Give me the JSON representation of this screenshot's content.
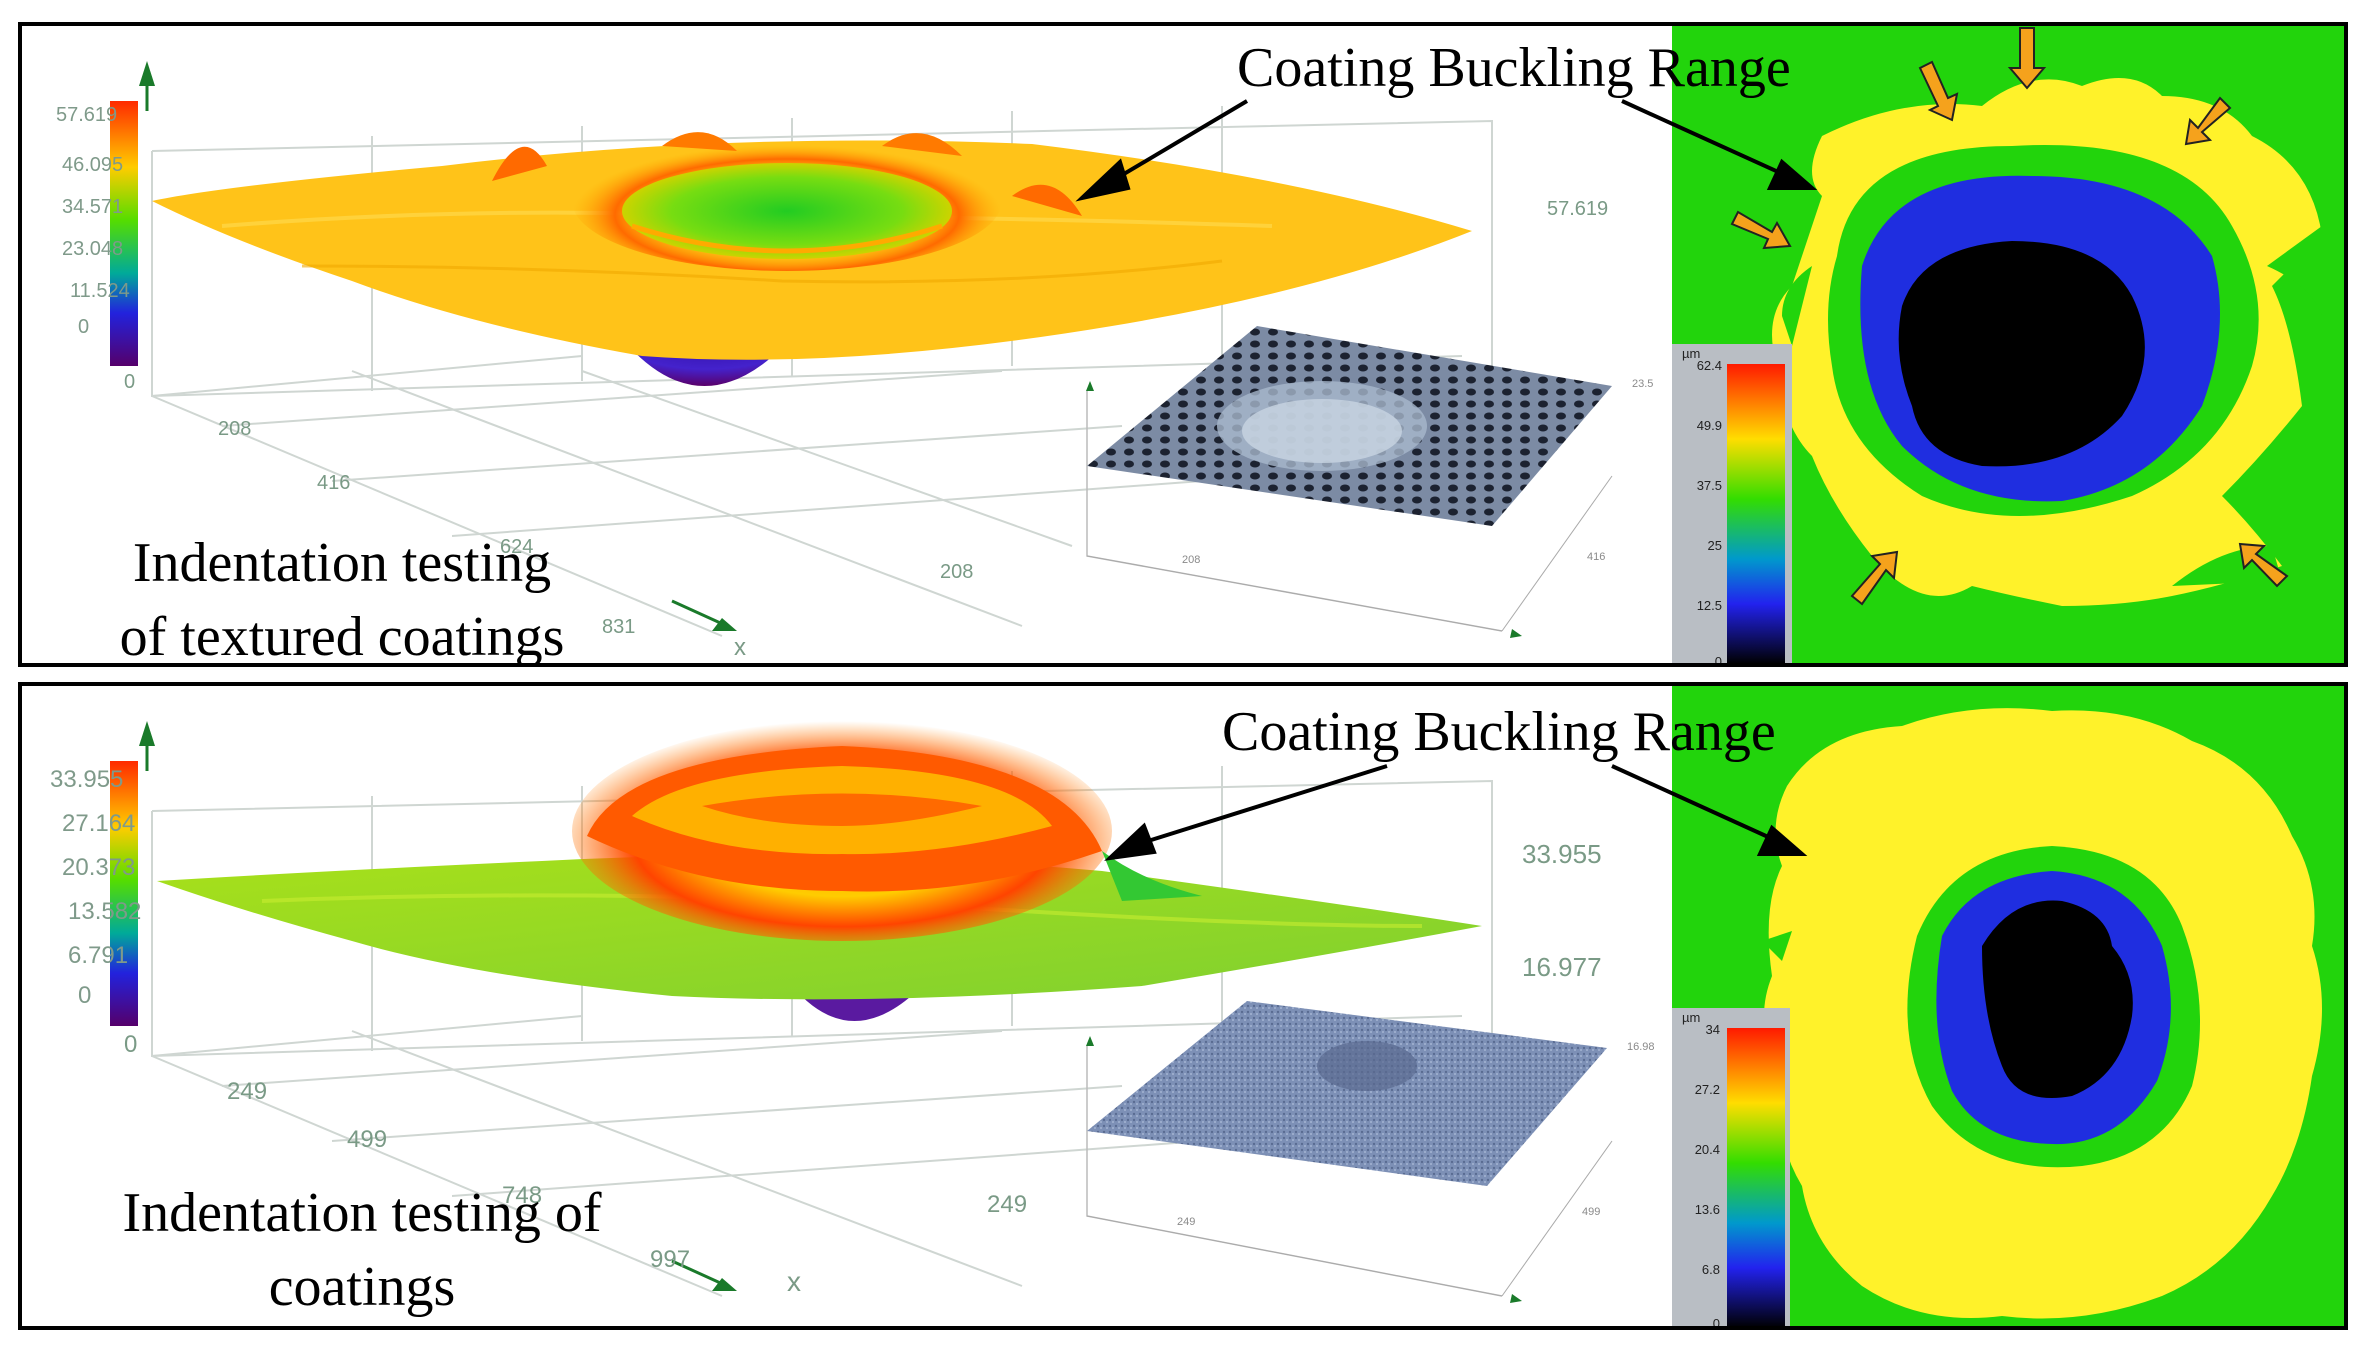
{
  "colors": {
    "green": "#22d40c",
    "yellow": "#fff22a",
    "blue": "#1f2ee0",
    "black": "#000000",
    "arrow_orange": "#f5a21c"
  },
  "panels": [
    {
      "caption_line1": "Indentation testing",
      "caption_line2": "of textured coatings",
      "callout": "Coating Buckling Range",
      "colorbar_ticks": [
        "57.619",
        "46.095",
        "34.571",
        "23.048",
        "11.524",
        "0"
      ],
      "axis_side_values": [
        "57.619"
      ],
      "axis_ticks": [
        "0",
        "208",
        "416",
        "624",
        "831",
        "208"
      ],
      "axis_x": "x",
      "inset_scale": {
        "unit": "µm",
        "ticks": [
          "62.4",
          "49.9",
          "37.5",
          "25",
          "12.5",
          "0"
        ]
      }
    },
    {
      "caption_line1": "Indentation testing of",
      "caption_line2": "coatings",
      "callout": "Coating Buckling Range",
      "colorbar_ticks": [
        "33.955",
        "27.164",
        "20.373",
        "13.582",
        "6.791",
        "0"
      ],
      "axis_side_values": [
        "33.955",
        "16.977"
      ],
      "axis_ticks": [
        "0",
        "249",
        "499",
        "748",
        "997",
        "249"
      ],
      "axis_x": "x",
      "inset_scale": {
        "unit": "µm",
        "ticks": [
          "34",
          "27.2",
          "20.4",
          "13.6",
          "6.8",
          "0"
        ]
      }
    }
  ]
}
